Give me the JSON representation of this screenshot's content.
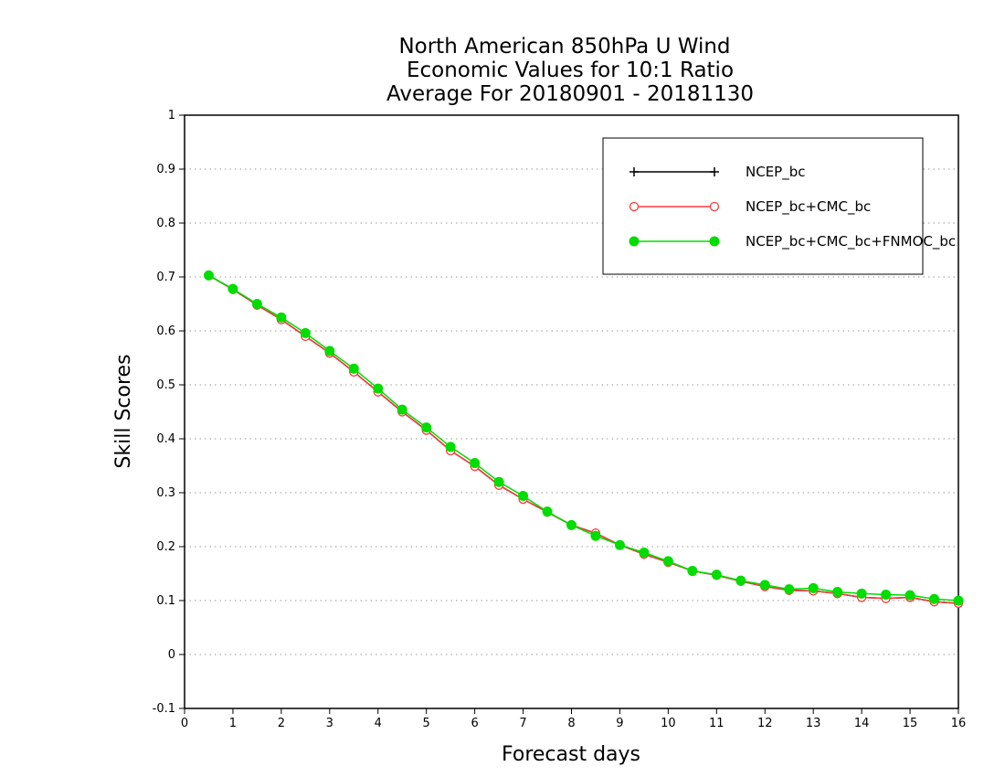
{
  "chart_data": {
    "type": "line",
    "title_lines": [
      "North American 850hPa U Wind",
      "Economic Values for 10:1 Ratio",
      "Average For 20180901 - 20181130"
    ],
    "xlabel": "Forecast days",
    "ylabel": "Skill Scores",
    "xlim": [
      0,
      16
    ],
    "ylim": [
      -0.1,
      1
    ],
    "x_ticks": [
      0,
      1,
      2,
      3,
      4,
      5,
      6,
      7,
      8,
      9,
      10,
      11,
      12,
      13,
      14,
      15,
      16
    ],
    "y_ticks": [
      -0.1,
      0,
      0.1,
      0.2,
      0.3,
      0.4,
      0.5,
      0.6,
      0.7,
      0.8,
      0.9,
      1
    ],
    "y_tick_labels": [
      "-0.1",
      "0",
      "0.1",
      "0.2",
      "0.3",
      "0.4",
      "0.5",
      "0.6",
      "0.7",
      "0.8",
      "0.9",
      "1"
    ],
    "grid": "horizontal dotted",
    "legend_position": "top-right",
    "x": [
      0.5,
      1,
      1.5,
      2,
      2.5,
      3,
      3.5,
      4,
      4.5,
      5,
      5.5,
      6,
      6.5,
      7,
      7.5,
      8,
      8.5,
      9,
      9.5,
      10,
      10.5,
      11,
      11.5,
      12,
      12.5,
      13,
      13.5,
      14,
      14.5,
      15,
      15.5,
      16
    ],
    "series": [
      {
        "name": "NCEP_bc",
        "color": "#000000",
        "marker": "plus",
        "values": [
          0.703,
          0.677,
          0.648,
          0.621,
          0.59,
          0.559,
          0.524,
          0.487,
          0.45,
          0.416,
          0.378,
          0.349,
          0.314,
          0.288,
          0.264,
          0.24,
          0.225,
          0.203,
          0.186,
          0.171,
          0.155,
          0.147,
          0.136,
          0.126,
          0.119,
          0.118,
          0.113,
          0.106,
          0.104,
          0.106,
          0.098,
          0.095
        ]
      },
      {
        "name": "NCEP_bc+CMC_bc",
        "color": "#ff3b3b",
        "marker": "open-circle",
        "values": [
          0.703,
          0.677,
          0.648,
          0.621,
          0.59,
          0.559,
          0.524,
          0.487,
          0.45,
          0.416,
          0.378,
          0.349,
          0.314,
          0.288,
          0.264,
          0.24,
          0.225,
          0.203,
          0.186,
          0.171,
          0.155,
          0.147,
          0.136,
          0.126,
          0.119,
          0.118,
          0.113,
          0.106,
          0.104,
          0.106,
          0.098,
          0.095
        ]
      },
      {
        "name": "NCEP_bc+CMC_bc+FNMOC_bc",
        "color": "#00dd00",
        "marker": "filled-circle",
        "values": [
          0.703,
          0.678,
          0.65,
          0.625,
          0.596,
          0.563,
          0.53,
          0.493,
          0.454,
          0.421,
          0.385,
          0.355,
          0.32,
          0.294,
          0.265,
          0.24,
          0.22,
          0.203,
          0.189,
          0.173,
          0.155,
          0.148,
          0.137,
          0.129,
          0.121,
          0.123,
          0.116,
          0.113,
          0.111,
          0.11,
          0.103,
          0.1
        ]
      }
    ]
  }
}
